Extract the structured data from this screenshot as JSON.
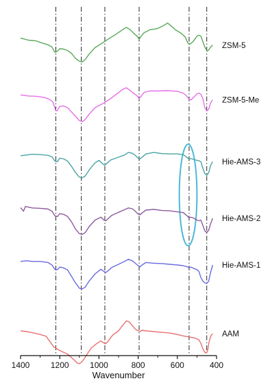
{
  "chart_data": {
    "type": "line",
    "title": "",
    "xlabel": "Wavenumber",
    "ylabel": "",
    "xlim": [
      1400,
      400
    ],
    "x_reversed": true,
    "xticks": [
      1400,
      1200,
      1000,
      800,
      600,
      400
    ],
    "reference_lines_x": [
      1220,
      1090,
      970,
      795,
      540,
      450
    ],
    "highlight_ellipse": {
      "x_center": 545,
      "x_span": [
        590,
        500
      ],
      "color": "#4db8d6"
    },
    "y_units": "offset intensity (a.u.)",
    "series": [
      {
        "name": "ZSM-5",
        "color": "#5aa85a",
        "points": [
          [
            1400,
            105
          ],
          [
            1360,
            99
          ],
          [
            1320,
            97
          ],
          [
            1290,
            91
          ],
          [
            1260,
            86
          ],
          [
            1240,
            80
          ],
          [
            1225,
            65
          ],
          [
            1215,
            67
          ],
          [
            1200,
            75
          ],
          [
            1180,
            74
          ],
          [
            1160,
            70
          ],
          [
            1140,
            62
          ],
          [
            1120,
            48
          ],
          [
            1100,
            40
          ],
          [
            1085,
            38
          ],
          [
            1070,
            45
          ],
          [
            1050,
            60
          ],
          [
            1020,
            78
          ],
          [
            980,
            92
          ],
          [
            950,
            103
          ],
          [
            920,
            113
          ],
          [
            880,
            128
          ],
          [
            860,
            135
          ],
          [
            840,
            128
          ],
          [
            820,
            117
          ],
          [
            805,
            110
          ],
          [
            795,
            102
          ],
          [
            785,
            110
          ],
          [
            770,
            120
          ],
          [
            740,
            128
          ],
          [
            700,
            132
          ],
          [
            670,
            140
          ],
          [
            650,
            147
          ],
          [
            630,
            138
          ],
          [
            610,
            128
          ],
          [
            580,
            118
          ],
          [
            560,
            108
          ],
          [
            545,
            90
          ],
          [
            535,
            88
          ],
          [
            520,
            95
          ],
          [
            500,
            110
          ],
          [
            490,
            113
          ],
          [
            480,
            110
          ],
          [
            470,
            95
          ],
          [
            460,
            80
          ],
          [
            448,
            68
          ],
          [
            440,
            72
          ],
          [
            430,
            80
          ],
          [
            420,
            85
          ]
        ]
      },
      {
        "name": "ZSM-5-Me",
        "color": "#e66ee6",
        "points": [
          [
            1400,
            90
          ],
          [
            1360,
            87
          ],
          [
            1320,
            86
          ],
          [
            1280,
            83
          ],
          [
            1250,
            77
          ],
          [
            1235,
            70
          ],
          [
            1220,
            45
          ],
          [
            1212,
            46
          ],
          [
            1200,
            58
          ],
          [
            1180,
            59
          ],
          [
            1160,
            54
          ],
          [
            1140,
            42
          ],
          [
            1120,
            30
          ],
          [
            1100,
            18
          ],
          [
            1085,
            15
          ],
          [
            1070,
            21
          ],
          [
            1050,
            36
          ],
          [
            1020,
            54
          ],
          [
            980,
            66
          ],
          [
            950,
            76
          ],
          [
            920,
            88
          ],
          [
            880,
            105
          ],
          [
            860,
            110
          ],
          [
            840,
            102
          ],
          [
            820,
            93
          ],
          [
            805,
            87
          ],
          [
            795,
            80
          ],
          [
            785,
            86
          ],
          [
            770,
            97
          ],
          [
            740,
            101
          ],
          [
            700,
            101
          ],
          [
            650,
            102
          ],
          [
            600,
            100
          ],
          [
            570,
            95
          ],
          [
            555,
            88
          ],
          [
            540,
            78
          ],
          [
            530,
            76
          ],
          [
            515,
            84
          ],
          [
            500,
            93
          ],
          [
            490,
            95
          ],
          [
            480,
            92
          ],
          [
            470,
            80
          ],
          [
            460,
            55
          ],
          [
            450,
            45
          ],
          [
            440,
            50
          ],
          [
            430,
            68
          ],
          [
            420,
            76
          ]
        ]
      },
      {
        "name": "Hie-AMS-3",
        "color": "#4aa3a3",
        "points": [
          [
            1400,
            35
          ],
          [
            1370,
            37
          ],
          [
            1340,
            39
          ],
          [
            1300,
            38
          ],
          [
            1260,
            36
          ],
          [
            1240,
            32
          ],
          [
            1225,
            20
          ],
          [
            1212,
            18
          ],
          [
            1200,
            28
          ],
          [
            1180,
            26
          ],
          [
            1160,
            20
          ],
          [
            1140,
            5
          ],
          [
            1120,
            -12
          ],
          [
            1100,
            -25
          ],
          [
            1085,
            -27
          ],
          [
            1070,
            -22
          ],
          [
            1050,
            -5
          ],
          [
            1020,
            15
          ],
          [
            1000,
            22
          ],
          [
            980,
            12
          ],
          [
            970,
            8
          ],
          [
            960,
            13
          ],
          [
            940,
            23
          ],
          [
            900,
            31
          ],
          [
            870,
            37
          ],
          [
            850,
            44
          ],
          [
            830,
            42
          ],
          [
            815,
            36
          ],
          [
            800,
            28
          ],
          [
            790,
            26
          ],
          [
            780,
            31
          ],
          [
            760,
            40
          ],
          [
            720,
            44
          ],
          [
            680,
            41
          ],
          [
            640,
            40
          ],
          [
            600,
            40
          ],
          [
            570,
            38
          ],
          [
            550,
            30
          ],
          [
            540,
            25
          ],
          [
            530,
            27
          ],
          [
            515,
            24
          ],
          [
            500,
            22
          ],
          [
            490,
            21
          ],
          [
            480,
            18
          ],
          [
            470,
            0
          ],
          [
            460,
            -15
          ],
          [
            450,
            -20
          ],
          [
            440,
            -12
          ],
          [
            430,
            8
          ],
          [
            420,
            18
          ]
        ]
      },
      {
        "name": "Hie-AMS-2",
        "color": "#8e5a9c",
        "points": [
          [
            1400,
            5
          ],
          [
            1385,
            -5
          ],
          [
            1375,
            8
          ],
          [
            1340,
            4
          ],
          [
            1300,
            3
          ],
          [
            1260,
            1
          ],
          [
            1240,
            -5
          ],
          [
            1225,
            -18
          ],
          [
            1212,
            -20
          ],
          [
            1200,
            -12
          ],
          [
            1180,
            -14
          ],
          [
            1160,
            -20
          ],
          [
            1140,
            -35
          ],
          [
            1120,
            -55
          ],
          [
            1100,
            -68
          ],
          [
            1085,
            -70
          ],
          [
            1070,
            -65
          ],
          [
            1050,
            -48
          ],
          [
            1020,
            -30
          ],
          [
            990,
            -22
          ],
          [
            975,
            -30
          ],
          [
            965,
            -32
          ],
          [
            955,
            -27
          ],
          [
            935,
            -17
          ],
          [
            900,
            -8
          ],
          [
            870,
            -1
          ],
          [
            850,
            4
          ],
          [
            830,
            2
          ],
          [
            815,
            -5
          ],
          [
            800,
            -13
          ],
          [
            790,
            -15
          ],
          [
            780,
            -10
          ],
          [
            760,
            -2
          ],
          [
            720,
            0
          ],
          [
            680,
            -3
          ],
          [
            640,
            -4
          ],
          [
            600,
            -7
          ],
          [
            570,
            -9
          ],
          [
            550,
            -18
          ],
          [
            540,
            -24
          ],
          [
            530,
            -22
          ],
          [
            515,
            -25
          ],
          [
            500,
            -30
          ],
          [
            490,
            -32
          ],
          [
            480,
            -30
          ],
          [
            470,
            -45
          ],
          [
            460,
            -60
          ],
          [
            450,
            -65
          ],
          [
            440,
            -58
          ],
          [
            430,
            -40
          ],
          [
            420,
            -25
          ]
        ]
      },
      {
        "name": "Hie-AMS-1",
        "color": "#6a6ae0",
        "points": [
          [
            1400,
            -40
          ],
          [
            1370,
            -38
          ],
          [
            1340,
            -40
          ],
          [
            1300,
            -40
          ],
          [
            1260,
            -43
          ],
          [
            1240,
            -50
          ],
          [
            1225,
            -62
          ],
          [
            1212,
            -63
          ],
          [
            1200,
            -56
          ],
          [
            1180,
            -58
          ],
          [
            1160,
            -64
          ],
          [
            1140,
            -82
          ],
          [
            1120,
            -100
          ],
          [
            1100,
            -115
          ],
          [
            1085,
            -117
          ],
          [
            1070,
            -112
          ],
          [
            1050,
            -95
          ],
          [
            1020,
            -75
          ],
          [
            990,
            -62
          ],
          [
            975,
            -68
          ],
          [
            965,
            -71
          ],
          [
            955,
            -67
          ],
          [
            935,
            -57
          ],
          [
            900,
            -48
          ],
          [
            870,
            -40
          ],
          [
            850,
            -34
          ],
          [
            830,
            -38
          ],
          [
            815,
            -45
          ],
          [
            800,
            -52
          ],
          [
            790,
            -55
          ],
          [
            780,
            -50
          ],
          [
            760,
            -43
          ],
          [
            720,
            -45
          ],
          [
            680,
            -46
          ],
          [
            640,
            -48
          ],
          [
            600,
            -50
          ],
          [
            570,
            -52
          ],
          [
            550,
            -55
          ],
          [
            540,
            -58
          ],
          [
            530,
            -56
          ],
          [
            515,
            -60
          ],
          [
            500,
            -63
          ],
          [
            490,
            -68
          ],
          [
            480,
            -85
          ],
          [
            470,
            -95
          ],
          [
            460,
            -100
          ],
          [
            450,
            -102
          ],
          [
            440,
            -95
          ],
          [
            430,
            -70
          ],
          [
            420,
            -50
          ]
        ]
      },
      {
        "name": "AAM",
        "color": "#e87070",
        "points": [
          [
            1400,
            -100
          ],
          [
            1370,
            -102
          ],
          [
            1340,
            -105
          ],
          [
            1300,
            -110
          ],
          [
            1270,
            -115
          ],
          [
            1250,
            -130
          ],
          [
            1230,
            -145
          ],
          [
            1215,
            -150
          ],
          [
            1200,
            -155
          ],
          [
            1180,
            -160
          ],
          [
            1160,
            -165
          ],
          [
            1140,
            -175
          ],
          [
            1120,
            -185
          ],
          [
            1110,
            -190
          ],
          [
            1100,
            -192
          ],
          [
            1090,
            -188
          ],
          [
            1075,
            -178
          ],
          [
            1060,
            -165
          ],
          [
            1040,
            -148
          ],
          [
            1010,
            -135
          ],
          [
            990,
            -128
          ],
          [
            975,
            -134
          ],
          [
            965,
            -136
          ],
          [
            955,
            -130
          ],
          [
            930,
            -112
          ],
          [
            900,
            -100
          ],
          [
            880,
            -85
          ],
          [
            860,
            -72
          ],
          [
            845,
            -75
          ],
          [
            830,
            -85
          ],
          [
            815,
            -95
          ],
          [
            800,
            -100
          ],
          [
            790,
            -102
          ],
          [
            780,
            -98
          ],
          [
            760,
            -100
          ],
          [
            720,
            -102
          ],
          [
            680,
            -104
          ],
          [
            640,
            -106
          ],
          [
            600,
            -110
          ],
          [
            570,
            -114
          ],
          [
            550,
            -116
          ],
          [
            530,
            -118
          ],
          [
            510,
            -120
          ],
          [
            490,
            -125
          ],
          [
            480,
            -135
          ],
          [
            470,
            -150
          ],
          [
            460,
            -160
          ],
          [
            452,
            -162
          ],
          [
            445,
            -155
          ],
          [
            440,
            -135
          ],
          [
            430,
            -115
          ],
          [
            420,
            -108
          ]
        ]
      }
    ]
  }
}
